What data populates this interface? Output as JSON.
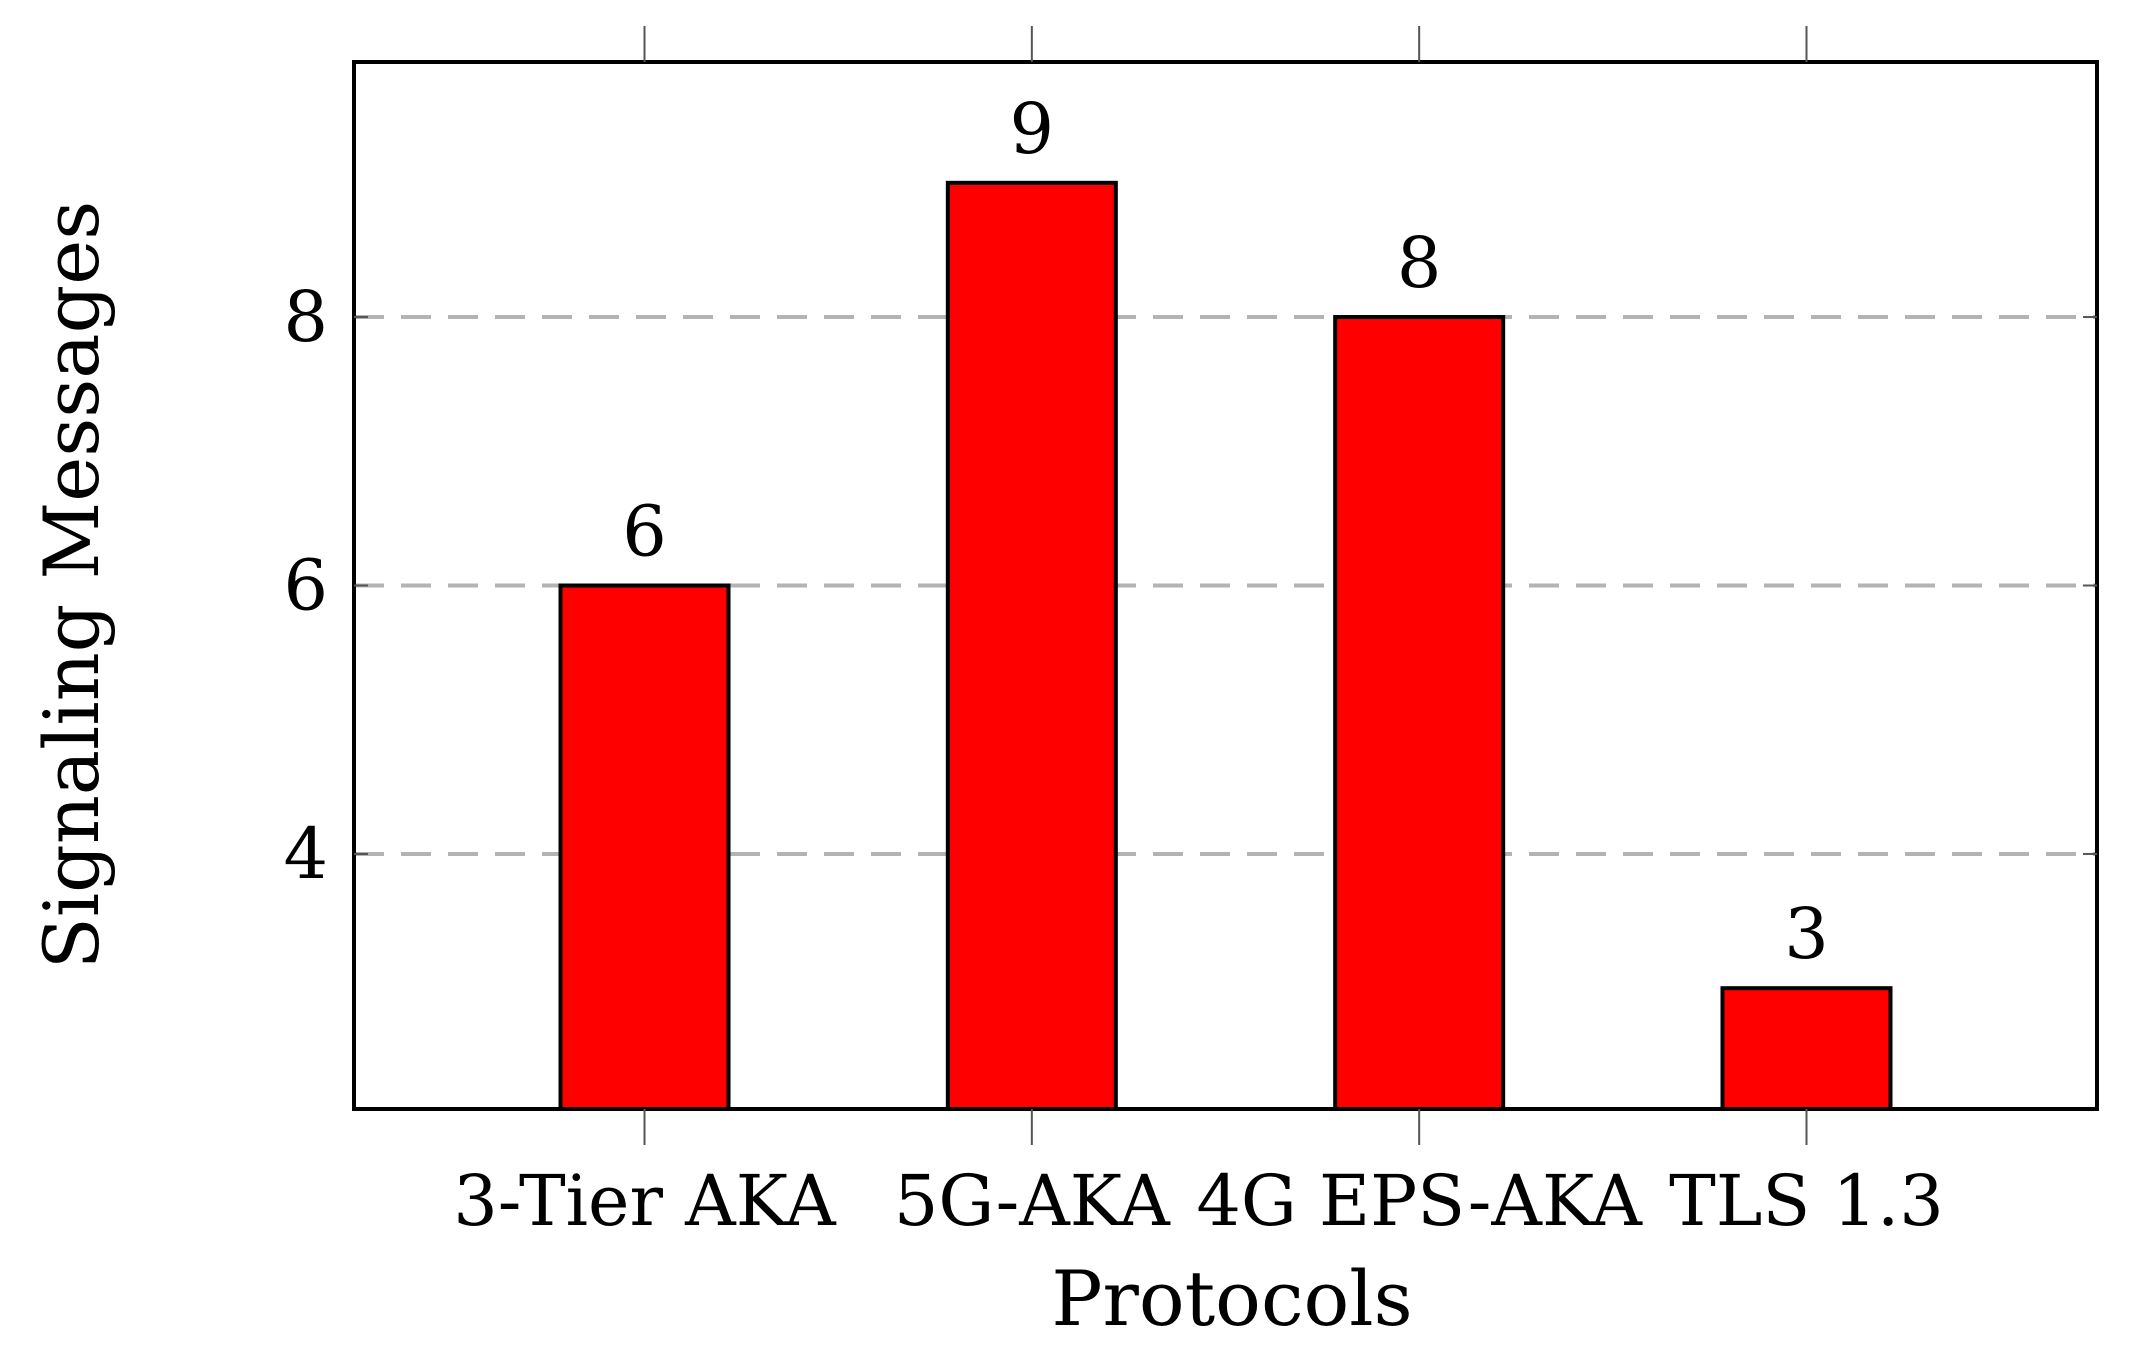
{
  "chart_data": {
    "type": "bar",
    "title": "",
    "xlabel": "Protocols",
    "ylabel": "Signaling Messages",
    "categories": [
      "3-Tier AKA",
      "5G-AKA",
      "4G EPS-AKA",
      "TLS 1.3"
    ],
    "values": [
      6,
      9,
      8,
      3
    ],
    "data_labels": [
      "6",
      "9",
      "8",
      "3"
    ],
    "ylim": [
      2.1,
      9.9
    ],
    "yticks": [
      4,
      6,
      8
    ],
    "ytick_labels": [
      "4",
      "6",
      "8"
    ],
    "grid": "horizontal dashed",
    "legend": "none",
    "colors": {
      "bar_fill": "#ff0000",
      "bar_edge": "#000000",
      "grid": "#b3b3b3"
    }
  }
}
